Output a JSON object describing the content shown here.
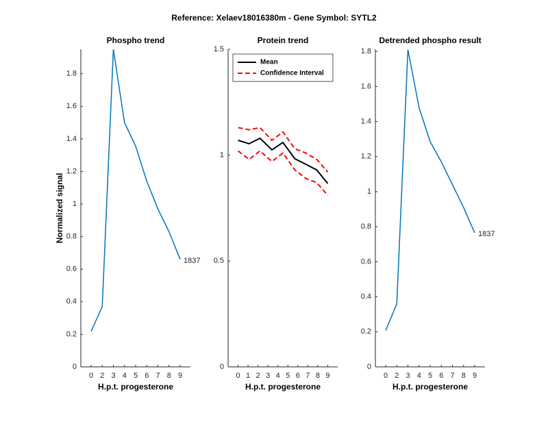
{
  "title": "Reference:  Xelaev18016380m - Gene Symbol:  SYTL2",
  "chart_data": [
    {
      "type": "line",
      "title": "Phospho trend",
      "xlabel": "H.p.t. progesterone",
      "ylabel": "Normalized signal",
      "categories": [
        "0",
        "2",
        "3",
        "4",
        "5",
        "6",
        "7",
        "8",
        "9"
      ],
      "series": [
        {
          "color": "#0072bd",
          "values": [
            0.218,
            0.37,
            1.95,
            1.5,
            1.355,
            1.14,
            0.97,
            0.83,
            0.66
          ]
        }
      ],
      "annotation": "1837",
      "ylim": [
        0,
        1.95
      ],
      "yticks": [
        0,
        0.2,
        0.4,
        0.6,
        0.8,
        1,
        1.2,
        1.4,
        1.6,
        1.8
      ]
    },
    {
      "type": "line",
      "title": "Protein trend",
      "xlabel": "H.p.t. progesterone",
      "x": [
        0,
        1.1,
        2.2,
        3.4,
        4.5,
        5.7,
        6.8,
        7.9,
        9.0
      ],
      "xlim": [
        -1,
        10
      ],
      "xticks": [
        0,
        1,
        2,
        3,
        4,
        5,
        6,
        7,
        8,
        9
      ],
      "series": [
        {
          "name": "Mean",
          "color": "#000000",
          "values": [
            1.07,
            1.054,
            1.08,
            1.025,
            1.06,
            0.983,
            0.957,
            0.93,
            0.866
          ]
        },
        {
          "name": "Confidence Interval",
          "color": "#ff0000",
          "dashed": true,
          "values": [
            1.13,
            1.12,
            1.13,
            1.07,
            1.11,
            1.03,
            1.01,
            0.98,
            0.92
          ],
          "lower_values": [
            1.02,
            0.98,
            1.02,
            0.97,
            1.01,
            0.93,
            0.89,
            0.87,
            0.81
          ]
        }
      ],
      "legend": "upper left",
      "ylim": [
        0,
        1.5
      ],
      "yticks": [
        0,
        0.5,
        1,
        1.5
      ]
    },
    {
      "type": "line",
      "title": "Detrended phospho result",
      "xlabel": "H.p.t. progesterone",
      "categories": [
        "0",
        "2",
        "3",
        "4",
        "5",
        "6",
        "7",
        "8",
        "9"
      ],
      "series": [
        {
          "color": "#0072bd",
          "values": [
            0.207,
            0.36,
            1.81,
            1.48,
            1.285,
            1.17,
            1.04,
            0.91,
            0.765
          ]
        }
      ],
      "annotation": "1837",
      "ylim": [
        0,
        1.8125
      ],
      "yticks": [
        0,
        0.2,
        0.4,
        0.6,
        0.8,
        1,
        1.2,
        1.4,
        1.6,
        1.8
      ]
    }
  ]
}
